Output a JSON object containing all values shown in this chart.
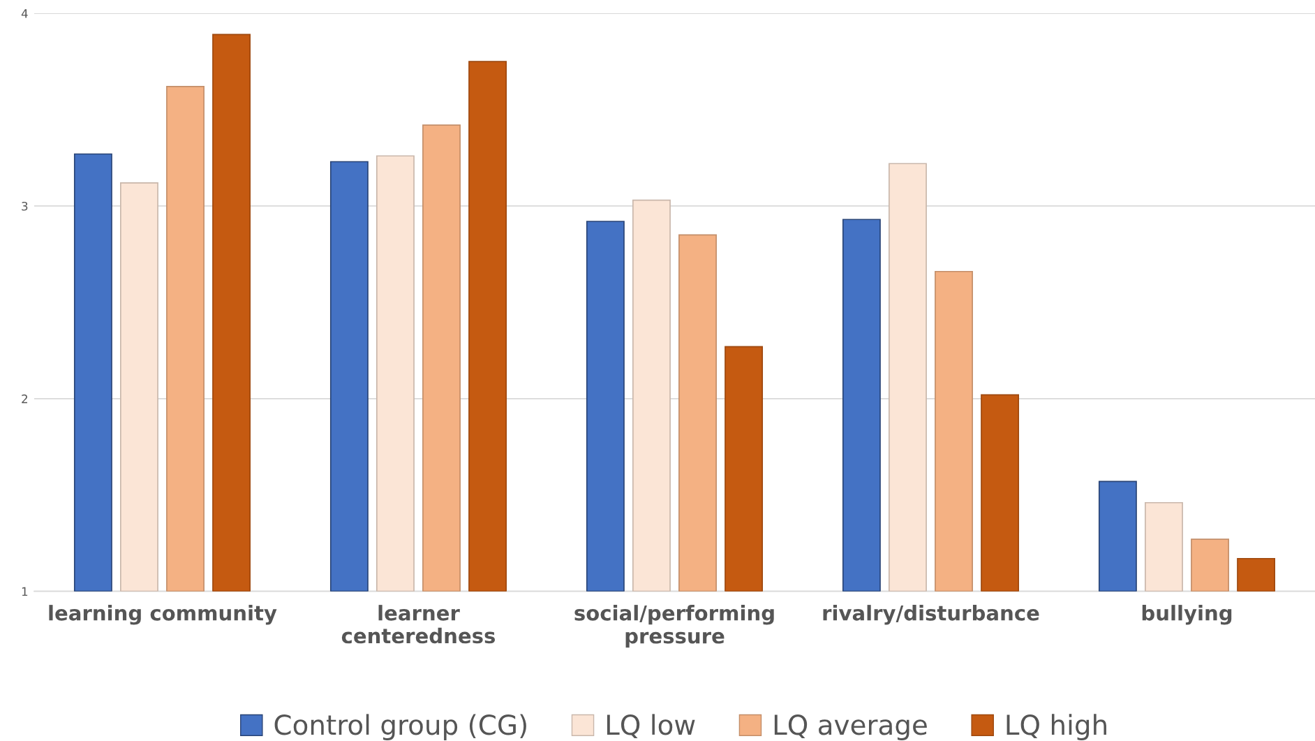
{
  "chart_data": {
    "type": "bar",
    "categories": [
      "learning community",
      "learner\ncenteredness",
      "social/performing\npressure",
      "rivalry/disturbance",
      "bullying"
    ],
    "series": [
      {
        "name": "Control group (CG)",
        "color": "#4472c4",
        "values": [
          3.27,
          3.23,
          2.92,
          2.93,
          1.57
        ]
      },
      {
        "name": "LQ low",
        "color": "#fbe5d6",
        "values": [
          3.12,
          3.26,
          3.03,
          3.22,
          1.46
        ]
      },
      {
        "name": "LQ average",
        "color": "#f4b183",
        "values": [
          3.62,
          3.42,
          2.85,
          2.66,
          1.27
        ]
      },
      {
        "name": "LQ high",
        "color": "#c55a11",
        "values": [
          3.89,
          3.75,
          2.27,
          2.02,
          1.17
        ]
      }
    ],
    "ylim": [
      1,
      4
    ],
    "yticks": [
      1,
      2,
      3,
      4
    ],
    "grid": "y",
    "legend": "bottom"
  }
}
